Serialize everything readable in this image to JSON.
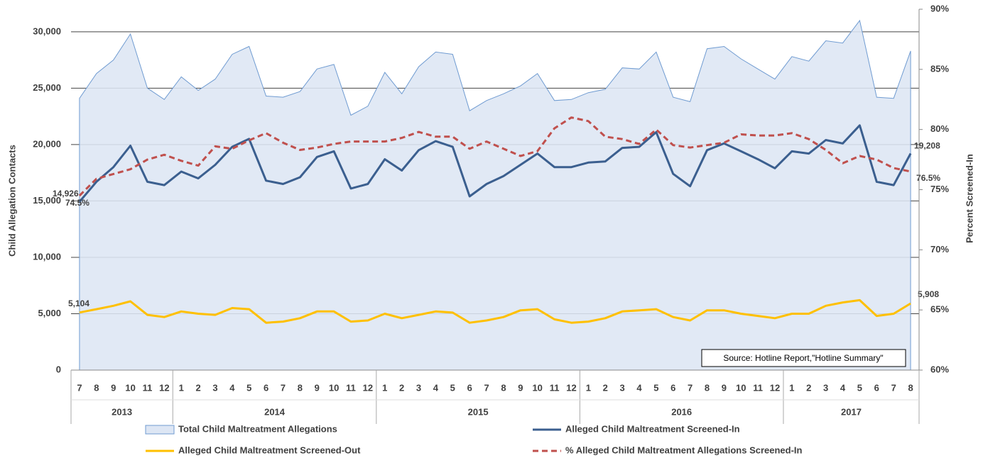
{
  "chart_data": {
    "type": "combo",
    "y_label": "Child Allegation Contacts",
    "y2_label": "Percent Screened-In",
    "annotation": "Source: Hotline Report,\"Hotline Summary\"",
    "category_groups": [
      {
        "name": "2013",
        "categories": [
          "7",
          "8",
          "9",
          "10",
          "11",
          "12"
        ]
      },
      {
        "name": "2014",
        "categories": [
          "1",
          "2",
          "3",
          "4",
          "5",
          "6",
          "7",
          "8",
          "9",
          "10",
          "11",
          "12"
        ]
      },
      {
        "name": "2015",
        "categories": [
          "1",
          "2",
          "3",
          "4",
          "5",
          "6",
          "7",
          "8",
          "9",
          "10",
          "11",
          "12"
        ]
      },
      {
        "name": "2016",
        "categories": [
          "1",
          "2",
          "3",
          "4",
          "5",
          "6",
          "7",
          "8",
          "9",
          "10",
          "11",
          "12"
        ]
      },
      {
        "name": "2017",
        "categories": [
          "1",
          "2",
          "3",
          "4",
          "5",
          "6",
          "7",
          "8"
        ]
      }
    ],
    "ylim": [
      0,
      32000
    ],
    "yticks": [
      0,
      {
        "value": 5000,
        "label": "5,000"
      },
      {
        "value": 10000,
        "label": "10,000"
      },
      {
        "value": 15000,
        "label": "15,000"
      },
      {
        "value": 20000,
        "label": "20,000"
      },
      {
        "value": 25000,
        "label": "25,000"
      },
      {
        "value": 30000,
        "label": "30,000"
      }
    ],
    "y2lim": [
      60,
      90
    ],
    "y2ticks": [
      {
        "value": 60,
        "label": "60%"
      },
      {
        "value": 65,
        "label": "65%"
      },
      {
        "value": 70,
        "label": "70%"
      },
      {
        "value": 75,
        "label": "75%"
      },
      {
        "value": 80,
        "label": "80%"
      },
      {
        "value": 85,
        "label": "85%"
      },
      {
        "value": 90,
        "label": "90%"
      }
    ],
    "grid": true,
    "legend": "bottom",
    "series": [
      {
        "name": "Total Child Maltreatment Allegations",
        "kind": "area",
        "color": "#6f9bd1",
        "fill": "#dde6f4",
        "values": [
          24100,
          26300,
          27500,
          29800,
          25000,
          24000,
          26000,
          24800,
          25800,
          28000,
          28700,
          24300,
          24200,
          24700,
          26700,
          27100,
          22600,
          23400,
          26400,
          24500,
          26900,
          28200,
          28000,
          23000,
          23900,
          24500,
          25200,
          26300,
          23900,
          24000,
          24600,
          24900,
          26800,
          26700,
          28200,
          24200,
          23800,
          28500,
          28700,
          27600,
          26700,
          25800,
          27800,
          27400,
          29200,
          29000,
          31000,
          24200,
          24100,
          28300
        ]
      },
      {
        "name": "Alleged Child Maltreatment Screened-In",
        "kind": "line",
        "color": "#3b5f8f",
        "values": [
          14926,
          16700,
          18000,
          19900,
          16700,
          16400,
          17600,
          17000,
          18200,
          19800,
          20500,
          16800,
          16500,
          17100,
          18900,
          19400,
          16100,
          16500,
          18700,
          17700,
          19500,
          20300,
          19800,
          15400,
          16500,
          17200,
          18200,
          19200,
          18000,
          18000,
          18400,
          18500,
          19700,
          19800,
          21100,
          17400,
          16300,
          19500,
          20100,
          19400,
          18700,
          17900,
          19400,
          19200,
          20400,
          20100,
          21700,
          16700,
          16400,
          19208
        ],
        "value_labels": [
          "14,926",
          null,
          null,
          null,
          null,
          null,
          null,
          null,
          null,
          null,
          null,
          null,
          null,
          null,
          null,
          null,
          null,
          null,
          null,
          null,
          null,
          null,
          null,
          null,
          null,
          null,
          null,
          null,
          null,
          null,
          null,
          null,
          null,
          null,
          null,
          null,
          null,
          null,
          null,
          null,
          null,
          null,
          null,
          null,
          null,
          null,
          null,
          null,
          null,
          "19,208"
        ]
      },
      {
        "name": "Alleged Child Maltreatment Screened-Out",
        "kind": "line",
        "color": "#ffc000",
        "values": [
          5104,
          5400,
          5700,
          6100,
          4900,
          4700,
          5200,
          5000,
          4900,
          5500,
          5400,
          4200,
          4300,
          4600,
          5200,
          5200,
          4300,
          4400,
          5000,
          4600,
          4900,
          5200,
          5100,
          4200,
          4400,
          4700,
          5300,
          5400,
          4500,
          4200,
          4300,
          4600,
          5200,
          5300,
          5400,
          4700,
          4400,
          5300,
          5300,
          5000,
          4800,
          4600,
          5000,
          5000,
          5700,
          6000,
          6200,
          4800,
          5000,
          5908
        ],
        "value_labels": [
          "5,104",
          null,
          null,
          null,
          null,
          null,
          null,
          null,
          null,
          null,
          null,
          null,
          null,
          null,
          null,
          null,
          null,
          null,
          null,
          null,
          null,
          null,
          null,
          null,
          null,
          null,
          null,
          null,
          null,
          null,
          null,
          null,
          null,
          null,
          null,
          null,
          null,
          null,
          null,
          null,
          null,
          null,
          null,
          null,
          null,
          null,
          null,
          null,
          null,
          "5,908"
        ]
      },
      {
        "name": "% Alleged Child Maltreatment Allegations Screened-In",
        "kind": "line",
        "line_style": "dashed",
        "axis": "y2",
        "color": "#c0504d",
        "values": [
          74.5,
          75.9,
          76.3,
          76.7,
          77.5,
          77.9,
          77.4,
          77.0,
          78.6,
          78.4,
          79.1,
          79.7,
          78.9,
          78.3,
          78.5,
          78.8,
          79.0,
          79.0,
          79.0,
          79.3,
          79.8,
          79.4,
          79.4,
          78.4,
          79.0,
          78.4,
          77.8,
          78.2,
          80.1,
          81.0,
          80.7,
          79.4,
          79.2,
          78.8,
          80.0,
          78.7,
          78.5,
          78.7,
          78.9,
          79.6,
          79.5,
          79.5,
          79.7,
          79.2,
          78.3,
          77.2,
          77.8,
          77.5,
          76.8,
          76.5
        ],
        "value_labels": [
          "74.5%",
          null,
          null,
          null,
          null,
          null,
          null,
          null,
          null,
          null,
          null,
          null,
          null,
          null,
          null,
          null,
          null,
          null,
          null,
          null,
          null,
          null,
          null,
          null,
          null,
          null,
          null,
          null,
          null,
          null,
          null,
          null,
          null,
          null,
          null,
          null,
          null,
          null,
          null,
          null,
          null,
          null,
          null,
          null,
          null,
          null,
          null,
          null,
          null,
          "76.5%"
        ]
      }
    ]
  }
}
